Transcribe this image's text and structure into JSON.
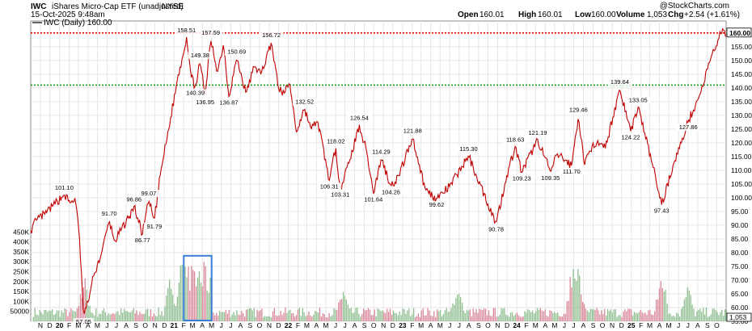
{
  "header": {
    "symbol": "IWC",
    "name": "iShares Micro-Cap ETF (unadjusted)",
    "exchange": "NYSE",
    "date": "15-Oct-2025 9:48am",
    "ohlc": {
      "open_label": "Open",
      "open": "160.01",
      "high_label": "High",
      "high": "160.01",
      "low_label": "Low",
      "low": "160.00",
      "close_label": "Close",
      "close": "160.00",
      "volume_label": "Volume",
      "volume": "1,053",
      "chg_label": "Chg",
      "chg": "+2.54 (+1.61%)"
    },
    "watermark": "@StockCharts.com",
    "legend": "IWC (Daily) 160.00"
  },
  "colors": {
    "price_line": "#c00000",
    "resistance": "#e00000",
    "support": "#1a9a1a",
    "vol_up": "#8fbf8f",
    "vol_down": "#d9889a",
    "highlight_box": "#3a7fd6",
    "grid": "#e6e6e6"
  },
  "chart_data": {
    "type": "line",
    "series": [
      {
        "name": "IWC (Daily)",
        "points": [
          [
            "2019-10-01",
            88
          ],
          [
            "2019-10-20",
            92
          ],
          [
            "2019-11-15",
            94
          ],
          [
            "2019-12-10",
            97
          ],
          [
            "2020-01-16",
            101.1
          ],
          [
            "2020-02-05",
            98
          ],
          [
            "2020-02-20",
            100
          ],
          [
            "2020-03-05",
            85
          ],
          [
            "2020-03-18",
            57.05
          ],
          [
            "2020-04-01",
            62
          ],
          [
            "2020-04-20",
            72
          ],
          [
            "2020-05-15",
            80
          ],
          [
            "2020-06-08",
            91.7
          ],
          [
            "2020-06-25",
            84
          ],
          [
            "2020-07-15",
            88
          ],
          [
            "2020-08-10",
            93
          ],
          [
            "2020-08-26",
            96.86
          ],
          [
            "2020-09-22",
            86.77
          ],
          [
            "2020-10-12",
            99.07
          ],
          [
            "2020-10-30",
            91.79
          ],
          [
            "2020-11-20",
            110
          ],
          [
            "2020-12-15",
            125
          ],
          [
            "2021-01-10",
            142
          ],
          [
            "2021-02-10",
            158.51
          ],
          [
            "2021-02-25",
            144
          ],
          [
            "2021-03-10",
            140.39
          ],
          [
            "2021-03-25",
            149.38
          ],
          [
            "2021-04-10",
            136.95
          ],
          [
            "2021-04-28",
            157.59
          ],
          [
            "2021-05-20",
            146
          ],
          [
            "2021-06-08",
            156
          ],
          [
            "2021-06-25",
            136.87
          ],
          [
            "2021-07-20",
            150.69
          ],
          [
            "2021-08-19",
            138
          ],
          [
            "2021-09-15",
            148
          ],
          [
            "2021-10-06",
            145
          ],
          [
            "2021-11-08",
            156.72
          ],
          [
            "2021-11-30",
            140
          ],
          [
            "2021-12-20",
            138
          ],
          [
            "2022-01-05",
            142
          ],
          [
            "2022-01-27",
            124
          ],
          [
            "2022-02-22",
            132.52
          ],
          [
            "2022-03-15",
            125
          ],
          [
            "2022-04-05",
            128
          ],
          [
            "2022-05-12",
            106.31
          ],
          [
            "2022-06-02",
            118.02
          ],
          [
            "2022-06-16",
            103.31
          ],
          [
            "2022-07-15",
            113
          ],
          [
            "2022-08-16",
            126.54
          ],
          [
            "2022-09-10",
            116
          ],
          [
            "2022-09-30",
            101.64
          ],
          [
            "2022-10-25",
            114.29
          ],
          [
            "2022-11-25",
            104.26
          ],
          [
            "2022-12-20",
            108
          ],
          [
            "2023-02-02",
            121.88
          ],
          [
            "2023-03-15",
            103
          ],
          [
            "2023-04-20",
            99.62
          ],
          [
            "2023-05-31",
            104
          ],
          [
            "2023-07-31",
            115.3
          ],
          [
            "2023-08-25",
            108
          ],
          [
            "2023-10-27",
            90.78
          ],
          [
            "2023-11-30",
            108
          ],
          [
            "2023-12-27",
            118.63
          ],
          [
            "2024-01-17",
            109.23
          ],
          [
            "2024-03-08",
            121.19
          ],
          [
            "2024-04-18",
            109.35
          ],
          [
            "2024-05-10",
            116
          ],
          [
            "2024-06-24",
            111.7
          ],
          [
            "2024-07-16",
            129.46
          ],
          [
            "2024-08-05",
            112
          ],
          [
            "2024-09-01",
            120
          ],
          [
            "2024-10-10",
            118
          ],
          [
            "2024-11-25",
            139.64
          ],
          [
            "2024-12-30",
            124.22
          ],
          [
            "2025-01-23",
            133.05
          ],
          [
            "2025-03-10",
            112
          ],
          [
            "2025-04-08",
            97.43
          ],
          [
            "2025-05-15",
            112
          ],
          [
            "2025-06-10",
            120
          ],
          [
            "2025-07-02",
            127.86
          ],
          [
            "2025-08-10",
            138
          ],
          [
            "2025-09-10",
            150
          ],
          [
            "2025-10-15",
            160
          ]
        ]
      }
    ],
    "annotations": [
      {
        "date": "2020-01-16",
        "value": 101.1,
        "text": "101.10",
        "pos": "above"
      },
      {
        "date": "2020-03-18",
        "value": 57.05,
        "text": "57.05",
        "pos": "below"
      },
      {
        "date": "2020-06-08",
        "value": 91.7,
        "text": "91.70",
        "pos": "above"
      },
      {
        "date": "2020-08-26",
        "value": 96.86,
        "text": "96.86",
        "pos": "above"
      },
      {
        "date": "2020-09-22",
        "value": 86.77,
        "text": "86.77",
        "pos": "below"
      },
      {
        "date": "2020-10-12",
        "value": 99.07,
        "text": "99.07",
        "pos": "above"
      },
      {
        "date": "2020-10-30",
        "value": 91.79,
        "text": "91.79",
        "pos": "below"
      },
      {
        "date": "2021-02-10",
        "value": 158.51,
        "text": "158.51",
        "pos": "above"
      },
      {
        "date": "2021-03-10",
        "value": 140.39,
        "text": "140.39",
        "pos": "below"
      },
      {
        "date": "2021-03-25",
        "value": 149.38,
        "text": "149.38",
        "pos": "above"
      },
      {
        "date": "2021-04-10",
        "value": 136.95,
        "text": "136.95",
        "pos": "below"
      },
      {
        "date": "2021-04-28",
        "value": 157.59,
        "text": "157.59",
        "pos": "above"
      },
      {
        "date": "2021-06-25",
        "value": 136.87,
        "text": "136.87",
        "pos": "below"
      },
      {
        "date": "2021-07-20",
        "value": 150.69,
        "text": "150.69",
        "pos": "above"
      },
      {
        "date": "2021-11-08",
        "value": 156.72,
        "text": "156.72",
        "pos": "above"
      },
      {
        "date": "2022-02-22",
        "value": 132.52,
        "text": "132.52",
        "pos": "above"
      },
      {
        "date": "2022-05-12",
        "value": 106.31,
        "text": "106.31",
        "pos": "below"
      },
      {
        "date": "2022-06-02",
        "value": 118.02,
        "text": "118.02",
        "pos": "above"
      },
      {
        "date": "2022-06-16",
        "value": 103.31,
        "text": "103.31",
        "pos": "below"
      },
      {
        "date": "2022-08-16",
        "value": 126.54,
        "text": "126.54",
        "pos": "above"
      },
      {
        "date": "2022-09-30",
        "value": 101.64,
        "text": "101.64",
        "pos": "below"
      },
      {
        "date": "2022-10-25",
        "value": 114.29,
        "text": "114.29",
        "pos": "above"
      },
      {
        "date": "2022-11-25",
        "value": 104.26,
        "text": "104.26",
        "pos": "below"
      },
      {
        "date": "2023-02-02",
        "value": 121.88,
        "text": "121.88",
        "pos": "above"
      },
      {
        "date": "2023-04-20",
        "value": 99.62,
        "text": "99.62",
        "pos": "below"
      },
      {
        "date": "2023-07-31",
        "value": 115.3,
        "text": "115.30",
        "pos": "above"
      },
      {
        "date": "2023-10-27",
        "value": 90.78,
        "text": "90.78",
        "pos": "below"
      },
      {
        "date": "2023-12-27",
        "value": 118.63,
        "text": "118.63",
        "pos": "above"
      },
      {
        "date": "2024-01-17",
        "value": 109.23,
        "text": "109.23",
        "pos": "below"
      },
      {
        "date": "2024-03-08",
        "value": 121.19,
        "text": "121.19",
        "pos": "above"
      },
      {
        "date": "2024-04-18",
        "value": 109.35,
        "text": "109.35",
        "pos": "below"
      },
      {
        "date": "2024-06-24",
        "value": 111.7,
        "text": "111.70",
        "pos": "below"
      },
      {
        "date": "2024-07-16",
        "value": 129.46,
        "text": "129.46",
        "pos": "above"
      },
      {
        "date": "2024-11-25",
        "value": 139.64,
        "text": "139.64",
        "pos": "above"
      },
      {
        "date": "2024-12-30",
        "value": 124.22,
        "text": "124.22",
        "pos": "below"
      },
      {
        "date": "2025-01-23",
        "value": 133.05,
        "text": "133.05",
        "pos": "above"
      },
      {
        "date": "2025-04-08",
        "value": 97.43,
        "text": "97.43",
        "pos": "below"
      },
      {
        "date": "2025-07-02",
        "value": 127.86,
        "text": "127.86",
        "pos": "below"
      }
    ],
    "reference_lines": [
      {
        "value": 160,
        "style": "dotted",
        "color": "#e00000"
      },
      {
        "value": 141,
        "style": "dotted",
        "color": "#1a9a1a"
      }
    ],
    "last_value_label": "160.00",
    "ylim": [
      55,
      162
    ],
    "yticks": [
      55,
      60,
      65,
      70,
      75,
      80,
      85,
      90,
      95,
      100,
      105,
      110,
      115,
      120,
      125,
      130,
      135,
      140,
      145,
      150,
      155,
      160
    ],
    "xlim": [
      "2019-10-01",
      "2025-10-31"
    ],
    "xticks": [
      {
        "d": "2019-11-01",
        "t": "N"
      },
      {
        "d": "2019-12-01",
        "t": "D"
      },
      {
        "d": "2020-01-01",
        "t": "20",
        "b": true
      },
      {
        "d": "2020-02-01",
        "t": "F"
      },
      {
        "d": "2020-03-01",
        "t": "M"
      },
      {
        "d": "2020-04-01",
        "t": "A"
      },
      {
        "d": "2020-05-01",
        "t": "M"
      },
      {
        "d": "2020-06-01",
        "t": "J"
      },
      {
        "d": "2020-07-01",
        "t": "J"
      },
      {
        "d": "2020-08-01",
        "t": "A"
      },
      {
        "d": "2020-09-01",
        "t": "S"
      },
      {
        "d": "2020-10-01",
        "t": "O"
      },
      {
        "d": "2020-11-01",
        "t": "N"
      },
      {
        "d": "2020-12-01",
        "t": "D"
      },
      {
        "d": "2021-01-01",
        "t": "21",
        "b": true
      },
      {
        "d": "2021-02-01",
        "t": "F"
      },
      {
        "d": "2021-03-01",
        "t": "M"
      },
      {
        "d": "2021-04-01",
        "t": "A"
      },
      {
        "d": "2021-05-01",
        "t": "M"
      },
      {
        "d": "2021-06-01",
        "t": "J"
      },
      {
        "d": "2021-07-01",
        "t": "J"
      },
      {
        "d": "2021-08-01",
        "t": "A"
      },
      {
        "d": "2021-09-01",
        "t": "S"
      },
      {
        "d": "2021-10-01",
        "t": "O"
      },
      {
        "d": "2021-11-01",
        "t": "N"
      },
      {
        "d": "2021-12-01",
        "t": "D"
      },
      {
        "d": "2022-01-01",
        "t": "22",
        "b": true
      },
      {
        "d": "2022-02-01",
        "t": "F"
      },
      {
        "d": "2022-03-01",
        "t": "M"
      },
      {
        "d": "2022-04-01",
        "t": "A"
      },
      {
        "d": "2022-05-01",
        "t": "M"
      },
      {
        "d": "2022-06-01",
        "t": "J"
      },
      {
        "d": "2022-07-01",
        "t": "J"
      },
      {
        "d": "2022-08-01",
        "t": "A"
      },
      {
        "d": "2022-09-01",
        "t": "S"
      },
      {
        "d": "2022-10-01",
        "t": "O"
      },
      {
        "d": "2022-11-01",
        "t": "N"
      },
      {
        "d": "2022-12-01",
        "t": "D"
      },
      {
        "d": "2023-01-01",
        "t": "23",
        "b": true
      },
      {
        "d": "2023-02-01",
        "t": "F"
      },
      {
        "d": "2023-03-01",
        "t": "M"
      },
      {
        "d": "2023-04-01",
        "t": "A"
      },
      {
        "d": "2023-05-01",
        "t": "M"
      },
      {
        "d": "2023-06-01",
        "t": "J"
      },
      {
        "d": "2023-07-01",
        "t": "J"
      },
      {
        "d": "2023-08-01",
        "t": "A"
      },
      {
        "d": "2023-09-01",
        "t": "S"
      },
      {
        "d": "2023-10-01",
        "t": "O"
      },
      {
        "d": "2023-11-01",
        "t": "N"
      },
      {
        "d": "2023-12-01",
        "t": "D"
      },
      {
        "d": "2024-01-01",
        "t": "24",
        "b": true
      },
      {
        "d": "2024-02-01",
        "t": "F"
      },
      {
        "d": "2024-03-01",
        "t": "M"
      },
      {
        "d": "2024-04-01",
        "t": "A"
      },
      {
        "d": "2024-05-01",
        "t": "M"
      },
      {
        "d": "2024-06-01",
        "t": "J"
      },
      {
        "d": "2024-07-01",
        "t": "J"
      },
      {
        "d": "2024-08-01",
        "t": "A"
      },
      {
        "d": "2024-09-01",
        "t": "S"
      },
      {
        "d": "2024-10-01",
        "t": "O"
      },
      {
        "d": "2024-11-01",
        "t": "N"
      },
      {
        "d": "2024-12-01",
        "t": "D"
      },
      {
        "d": "2025-01-01",
        "t": "25",
        "b": true
      },
      {
        "d": "2025-02-01",
        "t": "F"
      },
      {
        "d": "2025-03-01",
        "t": "M"
      },
      {
        "d": "2025-04-01",
        "t": "A"
      },
      {
        "d": "2025-05-01",
        "t": "M"
      },
      {
        "d": "2025-06-01",
        "t": "J"
      },
      {
        "d": "2025-07-01",
        "t": "J"
      },
      {
        "d": "2025-08-01",
        "t": "A"
      },
      {
        "d": "2025-09-01",
        "t": "S"
      },
      {
        "d": "2025-10-01",
        "t": "O"
      }
    ],
    "volume": {
      "ylim": [
        0,
        500000
      ],
      "yticks": [
        {
          "v": 50000,
          "t": "50000"
        },
        {
          "v": 100000,
          "t": "100K"
        },
        {
          "v": 150000,
          "t": "150K"
        },
        {
          "v": 200000,
          "t": "200K"
        },
        {
          "v": 250000,
          "t": "250K"
        },
        {
          "v": 300000,
          "t": "300K"
        },
        {
          "v": 350000,
          "t": "350K"
        },
        {
          "v": 400000,
          "t": "400K"
        },
        {
          "v": 450000,
          "t": "450K"
        }
      ],
      "last_label": "1,053",
      "baseline": 45000,
      "spikes": [
        {
          "date": "2020-03-18",
          "value": 225000
        },
        {
          "date": "2020-12-20",
          "value": 230000
        },
        {
          "date": "2021-01-28",
          "value": 330000
        },
        {
          "date": "2021-02-12",
          "value": 310000
        },
        {
          "date": "2021-03-05",
          "value": 275000
        },
        {
          "date": "2022-06-24",
          "value": 175000
        },
        {
          "date": "2023-06-23",
          "value": 190000
        },
        {
          "date": "2024-06-28",
          "value": 330000
        },
        {
          "date": "2024-07-12",
          "value": 280000
        },
        {
          "date": "2025-04-07",
          "value": 255000
        },
        {
          "date": "2025-06-27",
          "value": 215000
        }
      ],
      "highlight": {
        "from": "2021-02-01",
        "to": "2021-05-01"
      }
    }
  }
}
